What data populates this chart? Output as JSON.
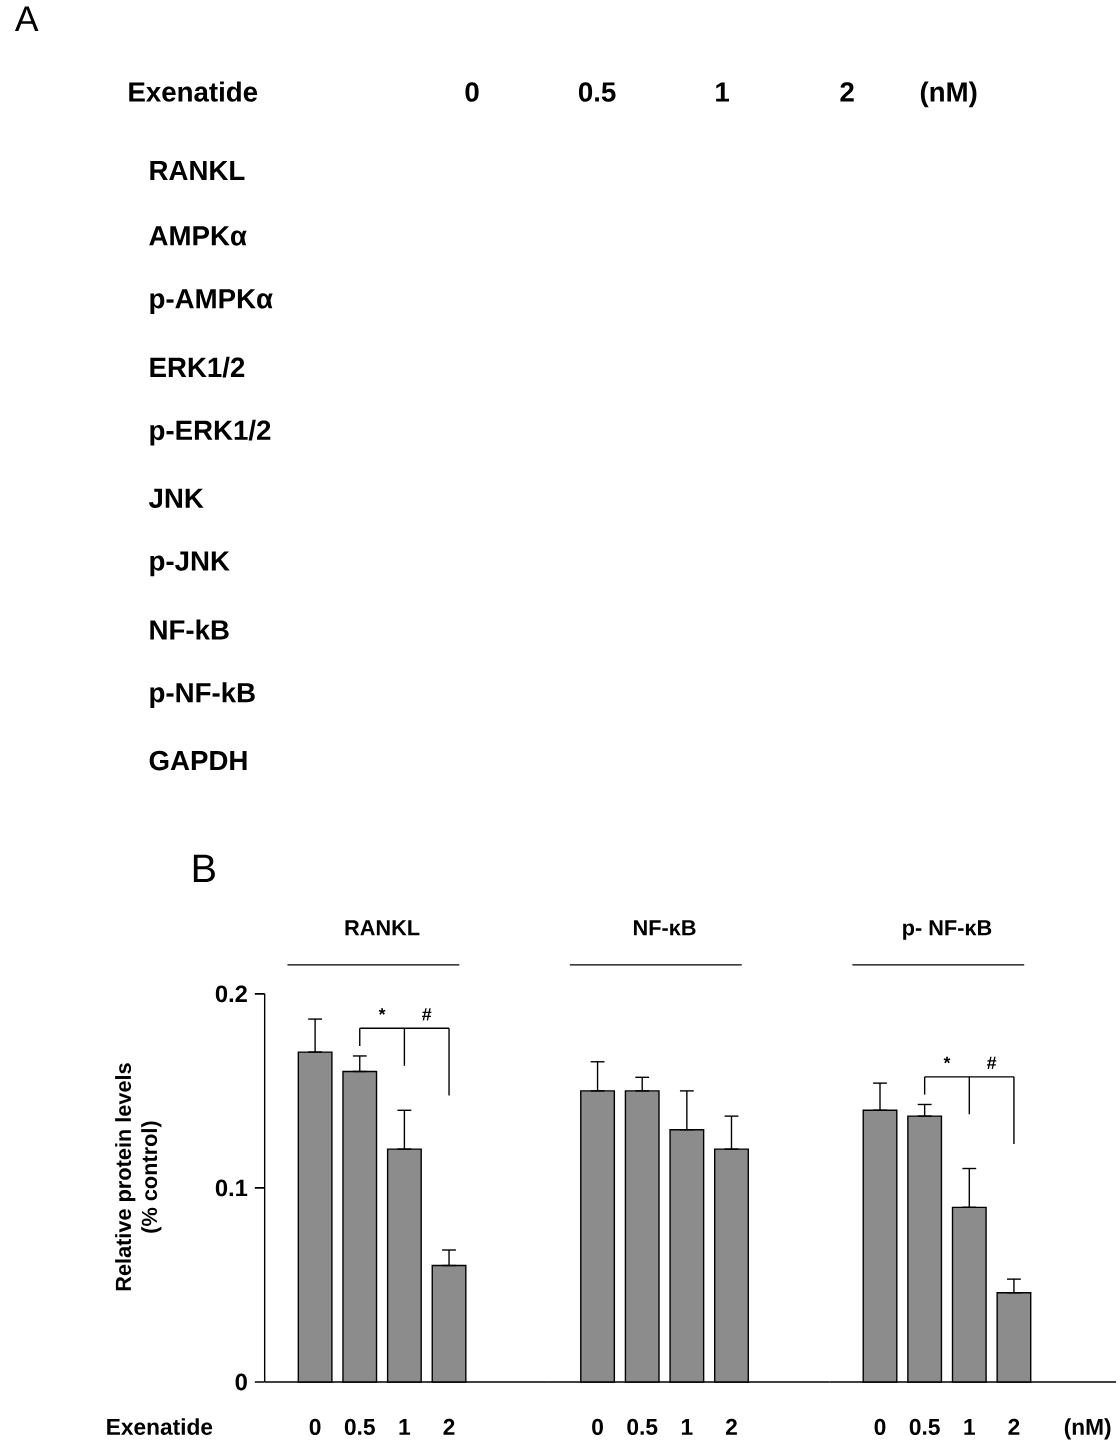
{
  "chart_data": [
    {
      "type": "other",
      "title": "A",
      "xlabel": "Exenatide",
      "categories": [
        "0",
        "0.5",
        "1",
        "2"
      ],
      "y_categories": [
        "RANKL",
        "AMPKα",
        "p-AMPKα",
        "ERK1/2",
        "p-ERK1/2",
        "JNK",
        "p-JNK",
        "NF-kB",
        "p-NF-kB",
        "GAPDH"
      ],
      "annotations": [
        "(nM)"
      ]
    },
    {
      "type": "bar",
      "title": "B",
      "ylabel": "Relative protein levels (% control)",
      "xlabel": "Exenatide",
      "categories": [
        "0",
        "0.5",
        "1",
        "2"
      ],
      "series": [
        {
          "name": "RANKL",
          "color": "#8c8c8c",
          "values": [
            0.17,
            0.16,
            0.12,
            0.06
          ],
          "errors": [
            [
              0.17,
              0.187
            ],
            [
              0.16,
              0.168
            ],
            [
              0.12,
              0.14
            ],
            [
              0.06,
              0.068
            ]
          ]
        }
      ],
      "ylim": [
        0,
        0.2
      ],
      "yticks": [
        0,
        0.1,
        0.2
      ],
      "annotations": [
        "*",
        "#"
      ]
    },
    {
      "type": "bar",
      "categories": [
        "0",
        "0.5",
        "1",
        "2"
      ],
      "series": [
        {
          "name": "NF-κB",
          "color": "#8c8c8c",
          "values": [
            0.15,
            0.15,
            0.13,
            0.12
          ],
          "errors": [
            [
              0.15,
              0.165
            ],
            [
              0.15,
              0.157
            ],
            [
              0.13,
              0.15
            ],
            [
              0.12,
              0.137
            ]
          ]
        }
      ],
      "ylim": [
        0,
        0.2
      ],
      "tick_labels": "x"
    },
    {
      "type": "bar",
      "xlabel": "(nM)",
      "categories": [
        "0",
        "0.5",
        "1",
        "2"
      ],
      "series": [
        {
          "name": "p- NF-κB",
          "color": "#8c8c8c",
          "values": [
            0.14,
            0.137,
            0.09,
            0.046
          ],
          "errors": [
            [
              0.14,
              0.154
            ],
            [
              0.137,
              0.143
            ],
            [
              0.09,
              0.11
            ],
            [
              0.046,
              0.053
            ]
          ]
        }
      ],
      "ylim": [
        0,
        0.2
      ],
      "tick_labels": "x",
      "annotations": [
        "*",
        "#"
      ]
    }
  ]
}
